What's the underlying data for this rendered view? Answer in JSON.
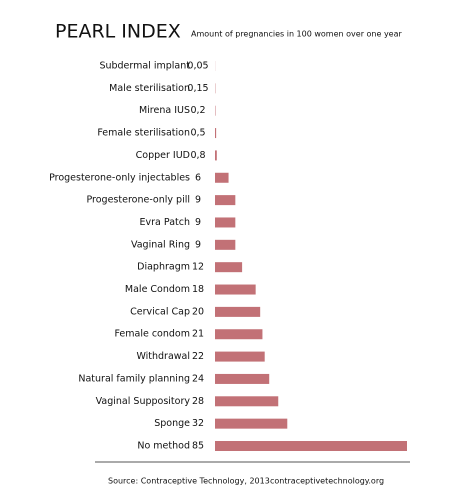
{
  "chart_data": {
    "type": "hbar",
    "title": "PEARL INDEX",
    "subtitle": "Amount of pregnancies in 100 women over one year",
    "categories": [
      "Subdermal implant",
      "Male sterilisation",
      "Mirena IUS",
      "Female sterilisation",
      "Copper IUD",
      "Progesterone-only injectables",
      "Progesterone-only pill",
      "Evra Patch",
      "Vaginal Ring",
      "Diaphragm",
      "Male Condom",
      "Cervical Cap",
      "Female condom",
      "Withdrawal",
      "Natural family planning",
      "Vaginal Suppository",
      "Sponge",
      "No method"
    ],
    "values": [
      0.05,
      0.15,
      0.2,
      0.5,
      0.8,
      6,
      9,
      9,
      9,
      12,
      18,
      20,
      21,
      22,
      24,
      28,
      32,
      85
    ],
    "value_labels": [
      "0,05",
      "0,15",
      "0,2",
      "0,5",
      "0,8",
      "6",
      "9",
      "9",
      "9",
      "12",
      "18",
      "20",
      "21",
      "22",
      "24",
      "28",
      "32",
      "85"
    ],
    "color": "#c27176",
    "source": "Source: Contraceptive Technology, 2013",
    "website": "contraceptivetechnology.org"
  }
}
